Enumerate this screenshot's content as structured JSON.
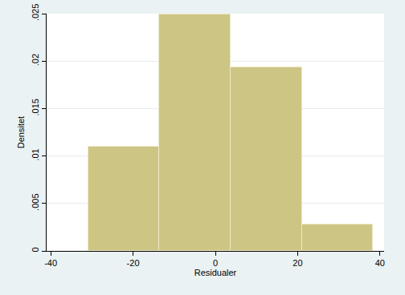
{
  "chart_data": {
    "type": "histogram",
    "bins": [
      -30.9,
      -13.6,
      3.7,
      21.0,
      38.3
    ],
    "values": [
      0.011,
      0.0249,
      0.0193,
      0.00275
    ],
    "color": "#cdc584",
    "xlabel": "Residualer",
    "ylabel": "Densitet",
    "xlim": [
      -41,
      41
    ],
    "xticks": [
      -40,
      -20,
      0,
      20,
      40
    ],
    "ylim": [
      0,
      0.025
    ],
    "yticks": [
      0,
      {
        "value": 0.005,
        "label": ".005"
      },
      {
        "value": 0.01,
        "label": ".01"
      },
      {
        "value": 0.015,
        "label": ".015"
      },
      {
        "value": 0.02,
        "label": ".02"
      },
      {
        "value": 0.025,
        "label": ".025"
      }
    ],
    "grid": true
  }
}
